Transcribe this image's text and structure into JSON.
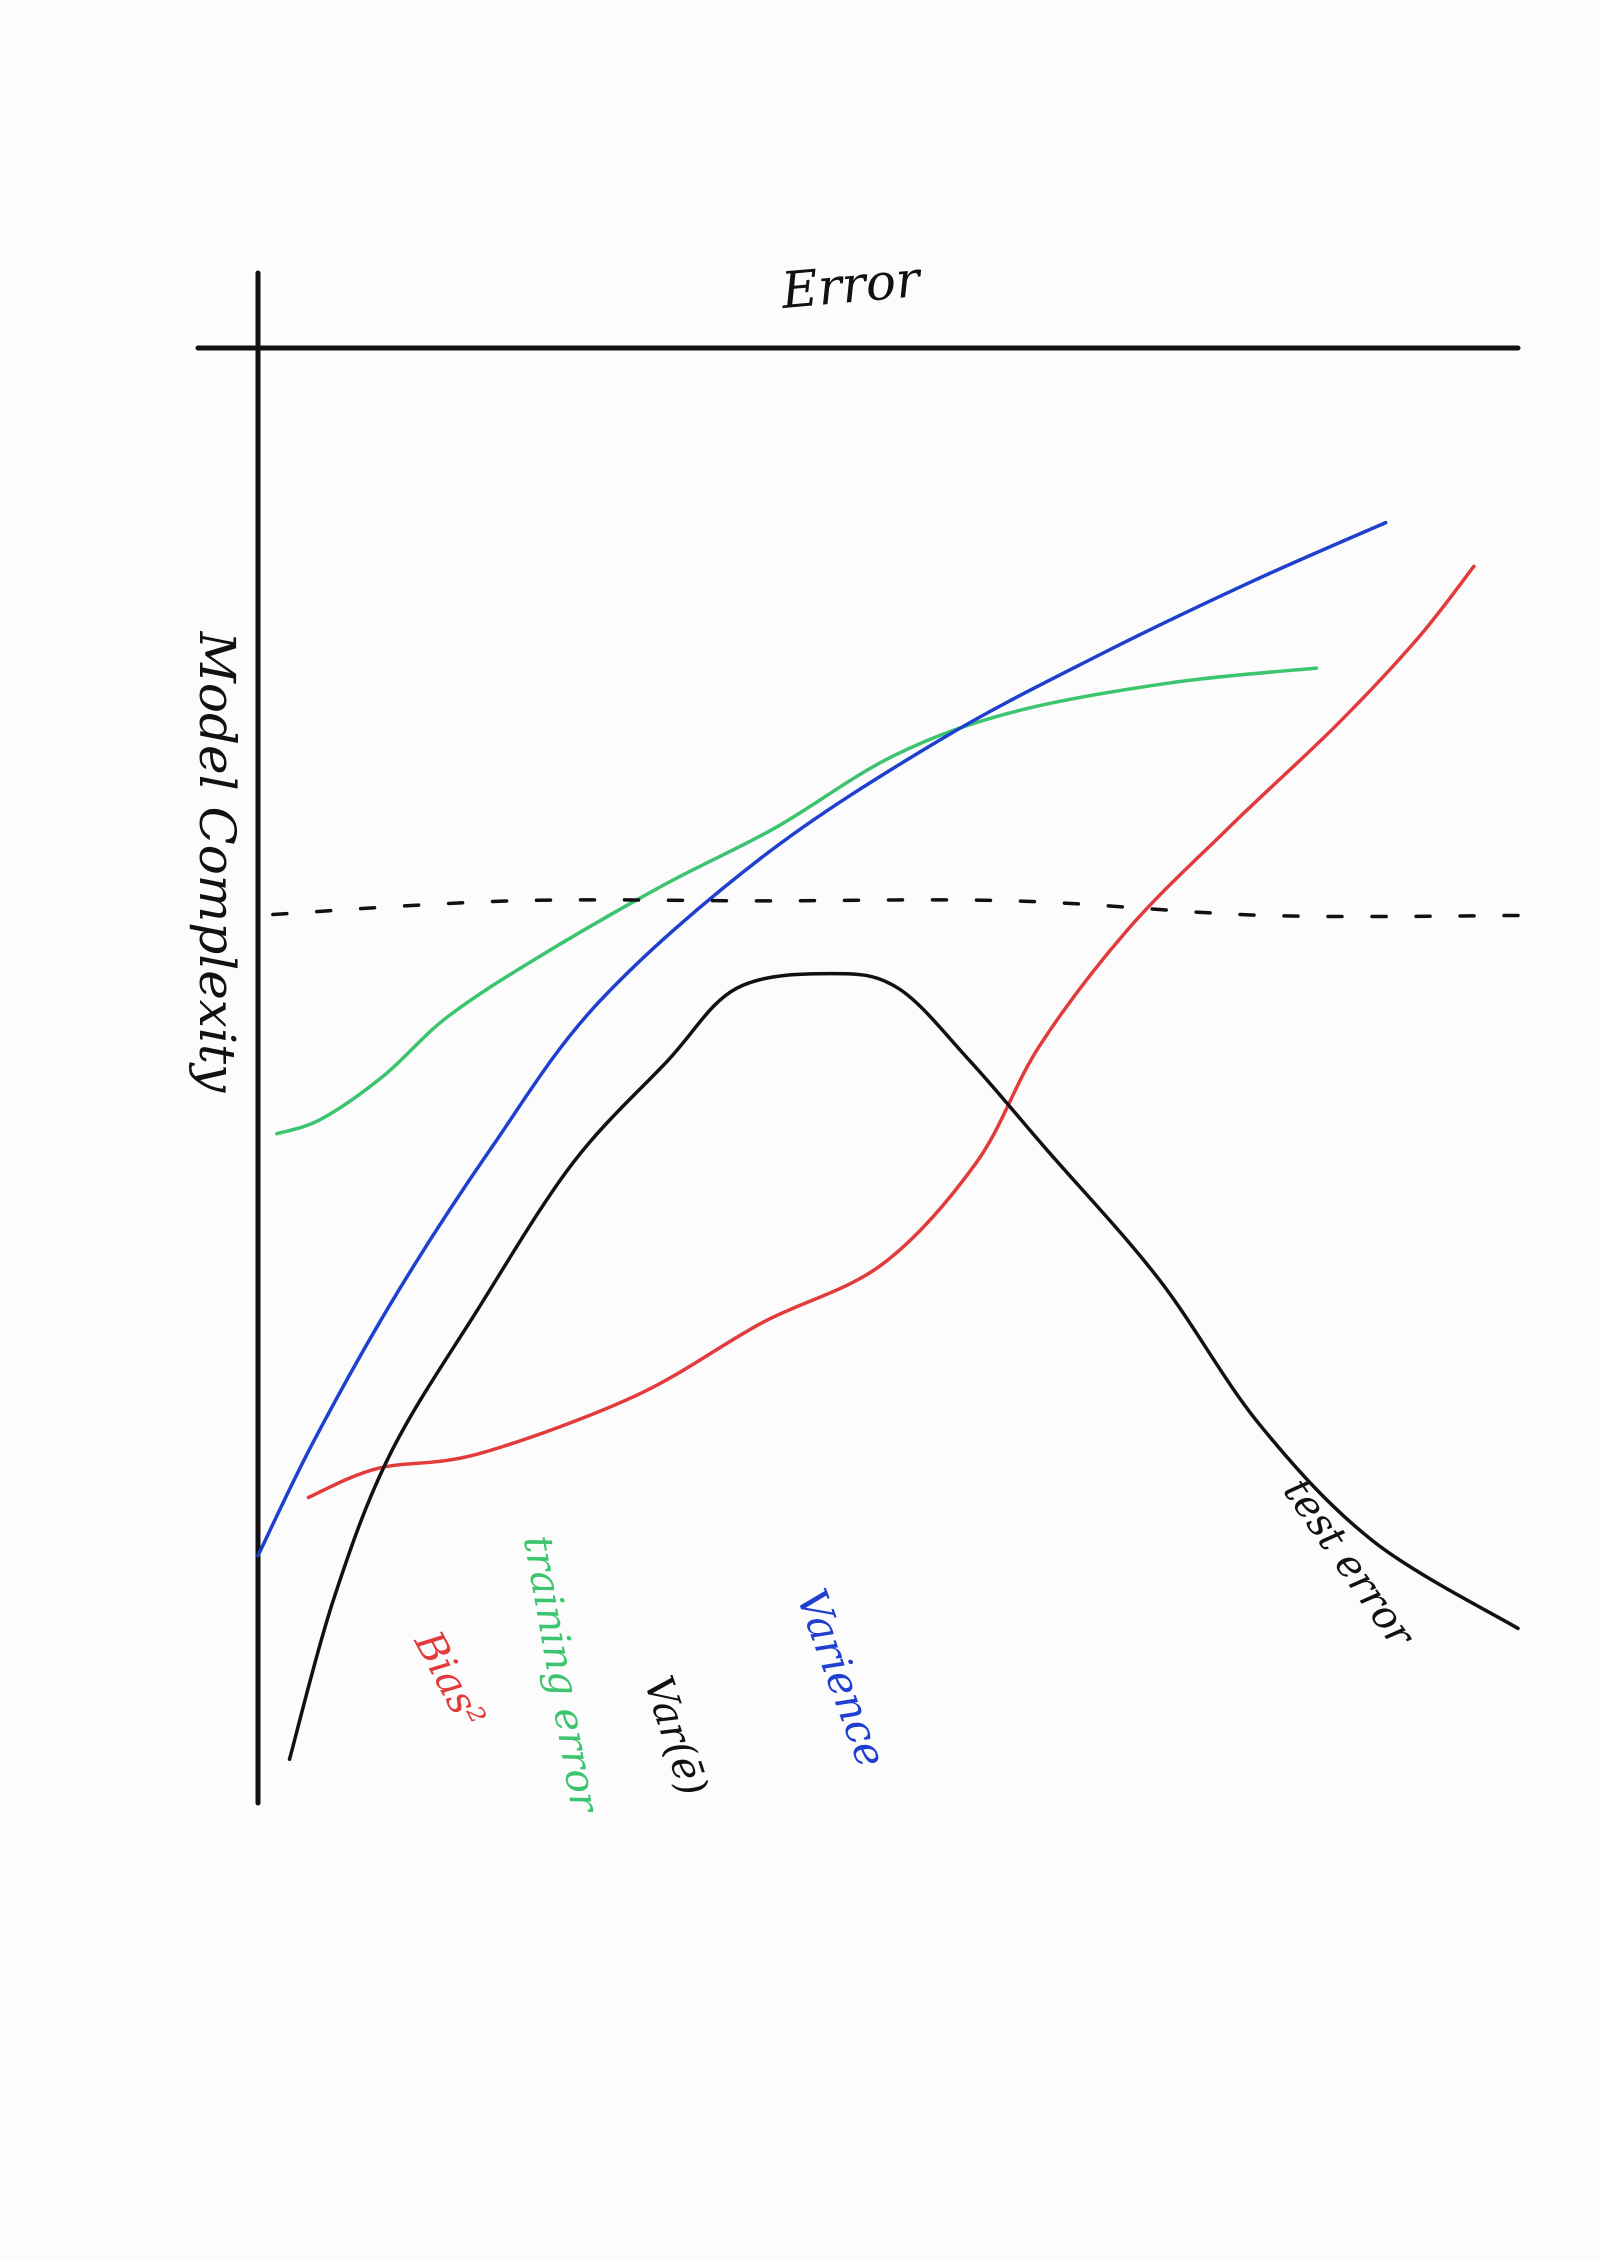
{
  "chart_data": {
    "type": "line",
    "orientation": "rotated",
    "xlabel": "Error",
    "ylabel": "Model Complexity",
    "grid": false,
    "legend": "none",
    "note": "Hand-drawn sketch; error increases downward (page y), complexity increases to the right (page x). Values are relative shapes only; no ticks are printed.",
    "series": [
      {
        "name": "Bias²",
        "color": "#e23b3b",
        "dashed": false,
        "points": [
          [
            965,
            0.15
          ],
          [
            920,
            0.2
          ],
          [
            855,
            0.26
          ],
          [
            770,
            0.33
          ],
          [
            690,
            0.4
          ],
          [
            620,
            0.48
          ],
          [
            570,
            0.56
          ],
          [
            495,
            0.63
          ],
          [
            400,
            0.67
          ],
          [
            300,
            0.72
          ],
          [
            175,
            0.76
          ],
          [
            95,
            0.77
          ],
          [
            40,
            0.79
          ]
        ]
      },
      {
        "name": "training error",
        "color": "#3cc46e",
        "dashed": false,
        "points": [
          [
            840,
            0.22
          ],
          [
            725,
            0.23
          ],
          [
            600,
            0.25
          ],
          [
            505,
            0.28
          ],
          [
            410,
            0.33
          ],
          [
            320,
            0.37
          ],
          [
            220,
            0.42
          ],
          [
            150,
            0.46
          ],
          [
            100,
            0.5
          ],
          [
            50,
            0.53
          ],
          [
            15,
            0.54
          ]
        ]
      },
      {
        "name": "Varience",
        "color": "#1f3fcf",
        "dashed": false,
        "points": [
          [
            895,
            0.12
          ],
          [
            790,
            0.16
          ],
          [
            670,
            0.21
          ],
          [
            540,
            0.27
          ],
          [
            400,
            0.35
          ],
          [
            270,
            0.45
          ],
          [
            185,
            0.55
          ],
          [
            110,
            0.65
          ],
          [
            45,
            0.75
          ],
          [
            0,
            0.83
          ]
        ]
      },
      {
        "name": "Var(ē)",
        "color": "#111111",
        "dashed": true,
        "points": [
          [
            1000,
            0.39
          ],
          [
            800,
            0.39
          ],
          [
            600,
            0.38
          ],
          [
            400,
            0.38
          ],
          [
            200,
            0.38
          ],
          [
            0,
            0.39
          ]
        ]
      },
      {
        "name": "test error",
        "color": "#111111",
        "dashed": false,
        "points": [
          [
            1000,
            0.88
          ],
          [
            885,
            0.82
          ],
          [
            795,
            0.74
          ],
          [
            715,
            0.64
          ],
          [
            625,
            0.55
          ],
          [
            565,
            0.49
          ],
          [
            508,
            0.44
          ],
          [
            455,
            0.43
          ],
          [
            380,
            0.44
          ],
          [
            325,
            0.49
          ],
          [
            250,
            0.56
          ],
          [
            175,
            0.66
          ],
          [
            105,
            0.76
          ],
          [
            60,
            0.86
          ],
          [
            25,
            0.97
          ]
        ]
      }
    ]
  }
}
